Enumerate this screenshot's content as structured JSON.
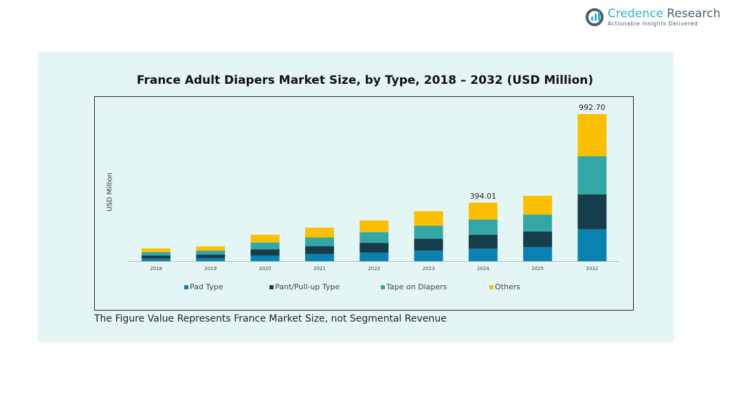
{
  "brand": {
    "name_a": "Credence",
    "name_b": " Research",
    "tagline": "Actionable Insights Delivered"
  },
  "footnote": "The Figure Value Represents France Market Size, not Segmental Revenue",
  "chart_data": {
    "type": "bar",
    "stacked": true,
    "title": "France Adult Diapers Market Size, by Type, 2018 – 2032 (USD Million)",
    "xlabel": "",
    "ylabel": "USD Million",
    "categories": [
      "2018",
      "2019",
      "2020",
      "2021",
      "2022",
      "2023",
      "2024",
      "2025",
      "2032"
    ],
    "series": [
      {
        "name": "Pad Type",
        "color": "#0a82b0",
        "values": [
          18.0,
          21.0,
          37.4,
          47.4,
          57.8,
          70.8,
          84.3,
          94.4,
          214.4
        ]
      },
      {
        "name": "Pant/Pull-up Type",
        "color": "#173c4a",
        "values": [
          20.5,
          23.9,
          42.7,
          54.1,
          66.0,
          80.9,
          93.8,
          105.0,
          236.3
        ]
      },
      {
        "name": "Tape on Diapers",
        "color": "#35a6a6",
        "values": [
          22.2,
          25.9,
          46.3,
          58.6,
          71.5,
          87.6,
          103.2,
          115.2,
          258.1
        ]
      },
      {
        "name": "Others",
        "color": "#fcbf00",
        "values": [
          24.8,
          28.9,
          51.6,
          65.4,
          79.7,
          97.7,
          112.71,
          126.4,
          283.9
        ]
      }
    ],
    "data_labels": [
      {
        "category": "2024",
        "text": "394.01"
      },
      {
        "category": "2032",
        "text": "992.70"
      }
    ],
    "ylim": [
      0,
      992.7
    ],
    "grid": false,
    "legend": "bottom"
  }
}
